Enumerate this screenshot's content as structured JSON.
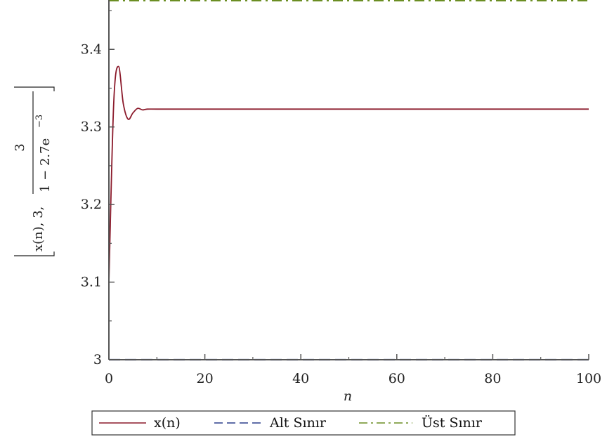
{
  "chart_data": {
    "type": "line",
    "xlabel": "n",
    "ylabel": {
      "bracket_text": "x(n), 3,",
      "fraction_numerator": "3",
      "fraction_denominator": "1 − 2.7e",
      "fraction_exponent": "−3"
    },
    "xlim": [
      0,
      100
    ],
    "ylim": [
      3.0,
      3.46
    ],
    "x_ticks": [
      0,
      20,
      40,
      60,
      80,
      100
    ],
    "x_tick_labels": [
      "0",
      "20",
      "40",
      "60",
      "80",
      "100"
    ],
    "y_ticks": [
      3.1,
      3.2,
      3.3,
      3.4
    ],
    "y_tick_labels": [
      "3.1",
      "3.2",
      "3.3",
      "3.4"
    ],
    "y_origin_label": "3",
    "legend_position": "bottom",
    "series": [
      {
        "name": "x(n)",
        "color": "#8b1a2b",
        "style": "solid",
        "x": [
          0,
          1,
          2,
          3,
          4,
          5,
          6,
          7,
          8,
          10,
          15,
          20,
          30,
          40,
          50,
          60,
          70,
          80,
          90,
          100
        ],
        "y": [
          3.1,
          3.33,
          3.378,
          3.33,
          3.31,
          3.318,
          3.324,
          3.322,
          3.323,
          3.323,
          3.323,
          3.323,
          3.323,
          3.323,
          3.323,
          3.323,
          3.323,
          3.323,
          3.323,
          3.323
        ]
      },
      {
        "name": "Alt Sınır",
        "color": "#2c3e8c",
        "style": "dash",
        "x": [
          0,
          100
        ],
        "y": [
          3.0,
          3.0
        ]
      },
      {
        "name": "Üst Sınır",
        "color": "#6b8e23",
        "style": "dashdot",
        "x": [
          0,
          100
        ],
        "y": [
          3.4628,
          3.4628
        ]
      }
    ]
  }
}
